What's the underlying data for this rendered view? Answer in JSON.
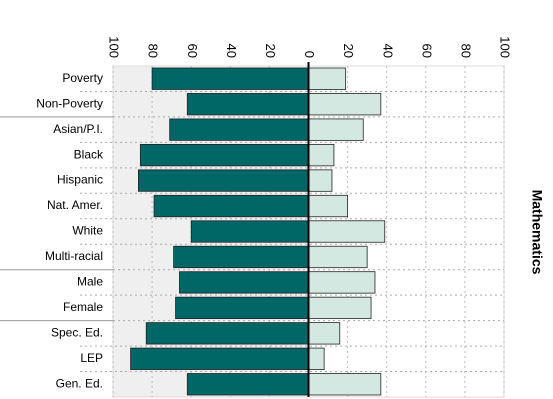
{
  "chart_data": {
    "type": "diverging_bar",
    "title": "Mathematics",
    "categories": [
      "Poverty",
      "Non-Poverty",
      "Asian/P.I.",
      "Black",
      "Hispanic",
      "Nat. Amer.",
      "White",
      "Multi-racial",
      "Male",
      "Female",
      "Spec. Ed.",
      "LEP",
      "Gen. Ed."
    ],
    "group_sizes": [
      2,
      6,
      2,
      3
    ],
    "series": [
      {
        "color": "#006666",
        "values": [
          -80,
          -62,
          -71,
          -86,
          -87,
          -79,
          -60,
          -69,
          -66,
          -68,
          -83,
          -91,
          -62
        ]
      },
      {
        "color": "#d4e8e2",
        "values": [
          19,
          37,
          28,
          13,
          12,
          20,
          39,
          30,
          34,
          32,
          16,
          8,
          37
        ]
      }
    ],
    "xlim": [
      -100,
      100
    ],
    "xticks": [
      {
        "value": -100,
        "label": "100"
      },
      {
        "value": -80,
        "label": "80"
      },
      {
        "value": -60,
        "label": "60"
      },
      {
        "value": -40,
        "label": "40"
      },
      {
        "value": -20,
        "label": "20"
      },
      0,
      20,
      40,
      60,
      80,
      100
    ],
    "grid": true
  }
}
